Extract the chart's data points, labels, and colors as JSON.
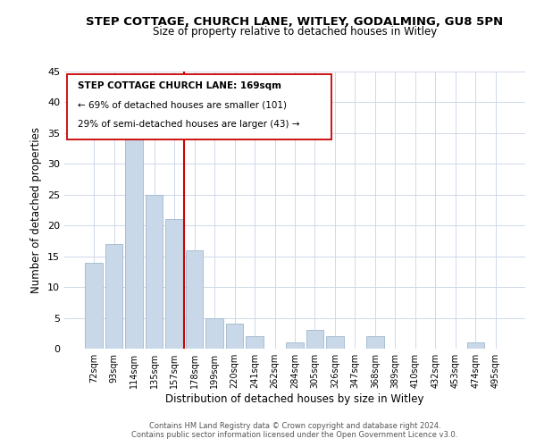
{
  "title": "STEP COTTAGE, CHURCH LANE, WITLEY, GODALMING, GU8 5PN",
  "subtitle": "Size of property relative to detached houses in Witley",
  "xlabel": "Distribution of detached houses by size in Witley",
  "ylabel": "Number of detached properties",
  "bar_labels": [
    "72sqm",
    "93sqm",
    "114sqm",
    "135sqm",
    "157sqm",
    "178sqm",
    "199sqm",
    "220sqm",
    "241sqm",
    "262sqm",
    "284sqm",
    "305sqm",
    "326sqm",
    "347sqm",
    "368sqm",
    "389sqm",
    "410sqm",
    "432sqm",
    "453sqm",
    "474sqm",
    "495sqm"
  ],
  "bar_values": [
    14,
    17,
    34,
    25,
    21,
    16,
    5,
    4,
    2,
    0,
    1,
    3,
    2,
    0,
    2,
    0,
    0,
    0,
    0,
    1,
    0
  ],
  "bar_color": "#c8d8e8",
  "bar_edge_color": "#a0b8cc",
  "vline_color": "#cc0000",
  "ylim": [
    0,
    45
  ],
  "yticks": [
    0,
    5,
    10,
    15,
    20,
    25,
    30,
    35,
    40,
    45
  ],
  "annotation_title": "STEP COTTAGE CHURCH LANE: 169sqm",
  "annotation_line1": "← 69% of detached houses are smaller (101)",
  "annotation_line2": "29% of semi-detached houses are larger (43) →",
  "annotation_box_color": "#ffffff",
  "annotation_box_edge": "#cc0000",
  "footer_line1": "Contains HM Land Registry data © Crown copyright and database right 2024.",
  "footer_line2": "Contains public sector information licensed under the Open Government Licence v3.0.",
  "background_color": "#ffffff",
  "grid_color": "#d0d8e8"
}
